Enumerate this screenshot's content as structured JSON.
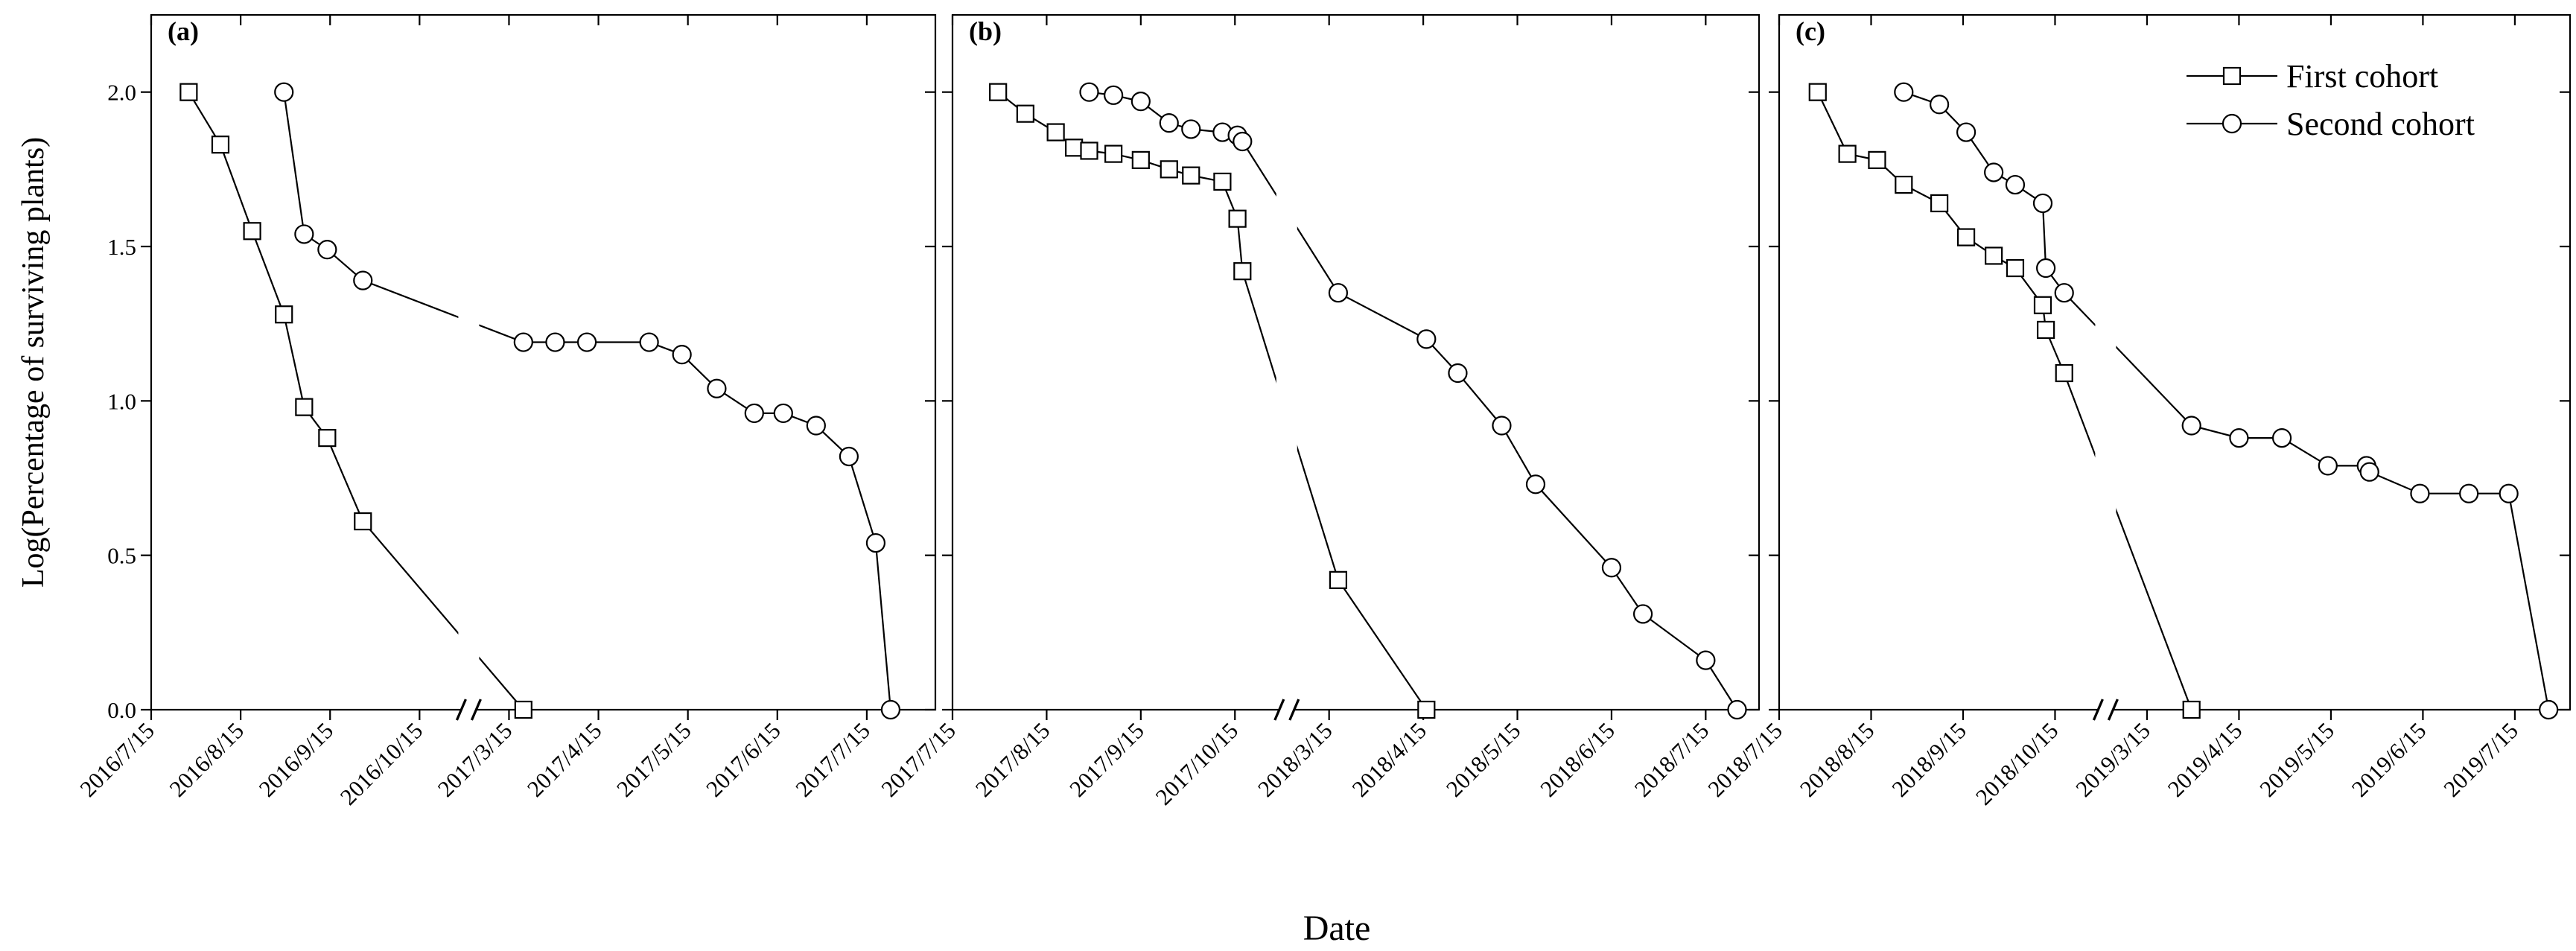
{
  "chart_data": [
    {
      "type": "line",
      "title": "(a)",
      "ylabel": "Log(Percentage of surviving plants)",
      "xlim": [
        "2016/7/15",
        "2017/8/7"
      ],
      "xticks": [
        "2016/7/15",
        "2016/8/15",
        "2016/9/15",
        "2016/10/15",
        "2017/3/15",
        "2017/4/15",
        "2017/5/15",
        "2017/6/15",
        "2017/7/15"
      ],
      "ylim": [
        0,
        2.25
      ],
      "yticks": [
        {
          "value": 0,
          "label": "0.0"
        },
        {
          "value": 0.5,
          "label": "0.5"
        },
        {
          "value": 1,
          "label": "1.0"
        },
        {
          "value": 1.5,
          "label": "1.5"
        },
        {
          "value": 2,
          "label": "2.0"
        }
      ],
      "series": [
        {
          "marker": "square",
          "color": "#000000",
          "x": [
            "2016/7/28",
            "2016/8/8",
            "2016/8/19",
            "2016/8/30",
            "2016/9/6",
            "2016/9/14",
            "2016/9/26",
            "2017/3/20"
          ],
          "values": [
            2.0,
            1.83,
            1.55,
            1.28,
            0.98,
            0.88,
            0.61,
            0.0
          ]
        },
        {
          "marker": "circle",
          "color": "#000000",
          "x": [
            "2016/8/30",
            "2016/9/6",
            "2016/9/14",
            "2016/9/26",
            "2017/3/20",
            "2017/3/31",
            "2017/4/11",
            "2017/5/2",
            "2017/5/13",
            "2017/5/25",
            "2017/6/7",
            "2017/6/17",
            "2017/6/28",
            "2017/7/9",
            "2017/7/18",
            "2017/7/23"
          ],
          "values": [
            2.0,
            1.54,
            1.49,
            1.39,
            1.19,
            1.19,
            1.19,
            1.19,
            1.15,
            1.04,
            0.96,
            0.96,
            0.92,
            0.82,
            0.54,
            0.0
          ]
        }
      ]
    },
    {
      "type": "line",
      "title": "(b)",
      "xlabel": "Date",
      "xlim": [
        "2017/7/15",
        "2018/8/1"
      ],
      "xticks": [
        "2017/7/15",
        "2017/8/15",
        "2017/9/15",
        "2017/10/15",
        "2018/3/15",
        "2018/4/15",
        "2018/5/15",
        "2018/6/15",
        "2018/7/15"
      ],
      "ylim": [
        0,
        2.25
      ],
      "yticks": [
        0,
        0.5,
        1,
        1.5,
        2
      ],
      "series": [
        {
          "marker": "square",
          "color": "#000000",
          "x": [
            "2017/7/30",
            "2017/8/8",
            "2017/8/18",
            "2017/8/24",
            "2017/8/29",
            "2017/9/6",
            "2017/9/15",
            "2017/9/24",
            "2017/10/1",
            "2017/10/11",
            "2017/10/19",
            "2017/10/27",
            "2018/3/18",
            "2018/4/16"
          ],
          "values": [
            2.0,
            1.93,
            1.87,
            1.82,
            1.81,
            1.8,
            1.78,
            1.75,
            1.73,
            1.71,
            1.59,
            1.42,
            0.42,
            0.0
          ]
        },
        {
          "marker": "circle",
          "color": "#000000",
          "x": [
            "2017/8/29",
            "2017/9/6",
            "2017/9/15",
            "2017/9/24",
            "2017/10/1",
            "2017/10/11",
            "2017/10/19",
            "2017/10/27",
            "2018/3/18",
            "2018/4/16",
            "2018/4/26",
            "2018/5/10",
            "2018/5/21",
            "2018/6/15",
            "2018/6/25",
            "2018/7/15",
            "2018/7/25"
          ],
          "values": [
            2.0,
            1.99,
            1.97,
            1.9,
            1.88,
            1.87,
            1.86,
            1.84,
            1.35,
            1.2,
            1.09,
            0.92,
            0.73,
            0.46,
            0.31,
            0.16,
            0.0
          ]
        }
      ]
    },
    {
      "type": "line",
      "title": "(c)",
      "legend": "upper right",
      "xlim": [
        "2018/7/15",
        "2019/8/2"
      ],
      "xticks": [
        "2018/7/15",
        "2018/8/15",
        "2018/9/15",
        "2018/10/15",
        "2019/3/15",
        "2019/4/15",
        "2019/5/15",
        "2019/6/15",
        "2019/7/15"
      ],
      "ylim": [
        0,
        2.25
      ],
      "yticks": [
        0,
        0.5,
        1,
        1.5,
        2
      ],
      "series": [
        {
          "name": "First cohort",
          "marker": "square",
          "color": "#000000",
          "x": [
            "2018/7/28",
            "2018/8/7",
            "2018/8/17",
            "2018/8/26",
            "2018/9/7",
            "2018/9/16",
            "2018/9/25",
            "2018/10/2",
            "2018/10/11",
            "2018/10/12",
            "2018/10/30",
            "2019/3/30"
          ],
          "values": [
            2.0,
            1.8,
            1.78,
            1.7,
            1.64,
            1.53,
            1.47,
            1.43,
            1.31,
            1.23,
            1.09,
            0.0
          ]
        },
        {
          "name": "Second cohort",
          "marker": "circle",
          "color": "#000000",
          "x": [
            "2018/8/26",
            "2018/9/7",
            "2018/9/16",
            "2018/9/25",
            "2018/10/2",
            "2018/10/11",
            "2018/10/12",
            "2018/10/30",
            "2019/3/30",
            "2019/4/15",
            "2019/4/29",
            "2019/5/14",
            "2019/5/27",
            "2019/5/28",
            "2019/6/14",
            "2019/6/30",
            "2019/7/13",
            "2019/7/26"
          ],
          "values": [
            2.0,
            1.96,
            1.87,
            1.74,
            1.7,
            1.64,
            1.43,
            1.35,
            0.92,
            0.88,
            0.88,
            0.79,
            0.79,
            0.77,
            0.7,
            0.7,
            0.7,
            0.0
          ]
        }
      ]
    }
  ]
}
